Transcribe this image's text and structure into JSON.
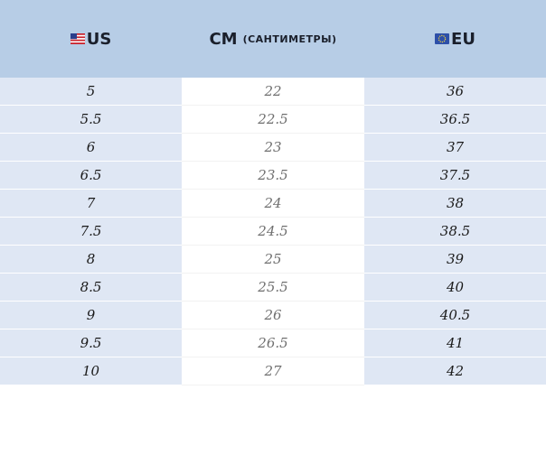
{
  "table": {
    "headers": {
      "us": {
        "label": "US",
        "flag_icon": "us-flag-icon"
      },
      "cm": {
        "label": "CM",
        "sub": "(САНТИМЕТРЫ)"
      },
      "eu": {
        "label": "EU",
        "flag_icon": "eu-flag-icon"
      }
    },
    "rows": [
      {
        "us": "5",
        "cm": "22",
        "eu": "36"
      },
      {
        "us": "5.5",
        "cm": "22.5",
        "eu": "36.5"
      },
      {
        "us": "6",
        "cm": "23",
        "eu": "37"
      },
      {
        "us": "6.5",
        "cm": "23.5",
        "eu": "37.5"
      },
      {
        "us": "7",
        "cm": "24",
        "eu": "38"
      },
      {
        "us": "7.5",
        "cm": "24.5",
        "eu": "38.5"
      },
      {
        "us": "8",
        "cm": "25",
        "eu": "39"
      },
      {
        "us": "8.5",
        "cm": "25.5",
        "eu": "40"
      },
      {
        "us": "9",
        "cm": "26",
        "eu": "40.5"
      },
      {
        "us": "9.5",
        "cm": "26.5",
        "eu": "41"
      },
      {
        "us": "10",
        "cm": "27",
        "eu": "42"
      }
    ]
  },
  "colors": {
    "header_bg": "#b7cde6",
    "side_column_bg": "#dfe7f4",
    "middle_column_bg": "#ffffff"
  }
}
